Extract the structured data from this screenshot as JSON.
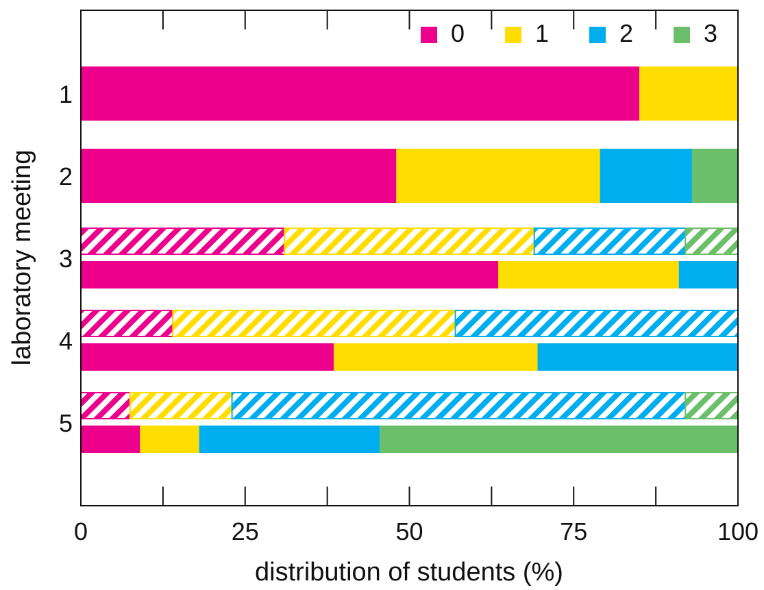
{
  "chart_data": {
    "type": "bar",
    "orientation": "horizontal",
    "stacked": true,
    "xlabel": "distribution of students (%)",
    "ylabel": "laboratory meeting",
    "xlim": [
      0,
      100
    ],
    "xticks": [
      "0",
      "25",
      "50",
      "75",
      "100"
    ],
    "grid": false,
    "legend": {
      "placement": "top-right",
      "entries": [
        {
          "label": "0",
          "color": "#EC008C"
        },
        {
          "label": "1",
          "color": "#FFDD00"
        },
        {
          "label": "2",
          "color": "#00AEEF"
        },
        {
          "label": "3",
          "color": "#6BBF6B"
        }
      ]
    },
    "categories": [
      "1",
      "2",
      "3",
      "4",
      "5"
    ],
    "bars": [
      {
        "category": "1",
        "style": "solid",
        "values": [
          85,
          15,
          0,
          0
        ]
      },
      {
        "category": "2",
        "style": "solid",
        "values": [
          48,
          31,
          14,
          7
        ]
      },
      {
        "category": "3",
        "style": "hatched",
        "values": [
          31,
          38,
          23,
          8
        ]
      },
      {
        "category": "3",
        "style": "solid",
        "values": [
          63.5,
          27.5,
          9,
          0
        ]
      },
      {
        "category": "4",
        "style": "hatched",
        "values": [
          14,
          43,
          43,
          0
        ]
      },
      {
        "category": "4",
        "style": "solid",
        "values": [
          38.5,
          31,
          30.5,
          0
        ]
      },
      {
        "category": "5",
        "style": "hatched",
        "values": [
          7.5,
          15.5,
          69,
          8
        ]
      },
      {
        "category": "5",
        "style": "solid",
        "values": [
          9,
          9,
          27.5,
          54.5
        ]
      }
    ]
  }
}
